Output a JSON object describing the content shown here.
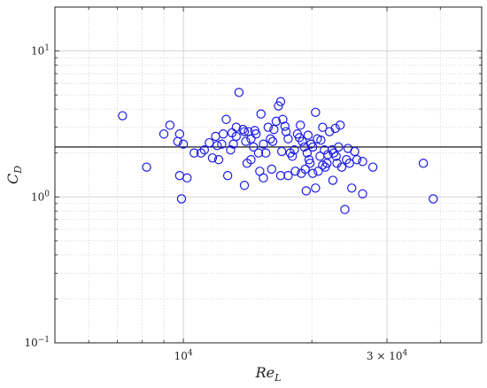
{
  "chart_data": {
    "type": "scatter",
    "xscale": "log",
    "yscale": "log",
    "xlim": [
      5000,
      50000
    ],
    "ylim": [
      0.1,
      20
    ],
    "grid": true,
    "xlabel": {
      "main": "Re",
      "sub": "L"
    },
    "ylabel": {
      "main": "C",
      "sub": "D"
    },
    "x_ticks": [
      {
        "value": 10000,
        "label": "10",
        "exp": "4"
      },
      {
        "value": 30000,
        "label": "3 × 10",
        "exp": "4"
      }
    ],
    "y_ticks": [
      {
        "value": 0.1,
        "label": "10",
        "exp": "−1"
      },
      {
        "value": 1,
        "label": "10",
        "exp": "0"
      },
      {
        "value": 10,
        "label": "10",
        "exp": "1"
      }
    ],
    "reference_line": {
      "y": 2.2
    },
    "colors": {
      "marker": "#1a1ae6",
      "reference_line": "#000000",
      "grid": "#d0d0d0",
      "axes": "#222222"
    },
    "series": [
      {
        "marker": "open-circle",
        "points": [
          [
            7200,
            3.6
          ],
          [
            9000,
            2.7
          ],
          [
            9300,
            3.1
          ],
          [
            9800,
            2.7
          ],
          [
            9700,
            2.4
          ],
          [
            10000,
            2.3
          ],
          [
            8200,
            1.6
          ],
          [
            9800,
            1.4
          ],
          [
            10200,
            1.35
          ],
          [
            9900,
            0.97
          ],
          [
            10600,
            2.0
          ],
          [
            11000,
            2.0
          ],
          [
            11200,
            2.1
          ],
          [
            11900,
            2.6
          ],
          [
            12100,
            1.8
          ],
          [
            12300,
            2.3
          ],
          [
            12400,
            2.7
          ],
          [
            12600,
            3.4
          ],
          [
            12900,
            2.1
          ],
          [
            13100,
            2.3
          ],
          [
            13300,
            2.6
          ],
          [
            13500,
            5.2
          ],
          [
            13800,
            2.9
          ],
          [
            13900,
            2.8
          ],
          [
            14000,
            2.4
          ],
          [
            14200,
            2.8
          ],
          [
            14400,
            2.5
          ],
          [
            14600,
            2.2
          ],
          [
            14800,
            2.7
          ],
          [
            15000,
            2.0
          ],
          [
            15200,
            3.7
          ],
          [
            15400,
            2.3
          ],
          [
            15600,
            2.0
          ],
          [
            15800,
            3.0
          ],
          [
            16000,
            2.5
          ],
          [
            16200,
            2.4
          ],
          [
            16500,
            3.3
          ],
          [
            16700,
            4.2
          ],
          [
            16900,
            4.5
          ],
          [
            17100,
            3.4
          ],
          [
            17400,
            2.8
          ],
          [
            17600,
            2.5
          ],
          [
            17800,
            2.0
          ],
          [
            18000,
            1.9
          ],
          [
            18200,
            2.1
          ],
          [
            18500,
            2.7
          ],
          [
            18800,
            3.1
          ],
          [
            19000,
            2.4
          ],
          [
            19200,
            2.2
          ],
          [
            19500,
            2.0
          ],
          [
            19700,
            1.8
          ],
          [
            19900,
            2.3
          ],
          [
            20100,
            2.2
          ],
          [
            20400,
            3.8
          ],
          [
            20600,
            2.5
          ],
          [
            20900,
            1.9
          ],
          [
            21200,
            3.0
          ],
          [
            21400,
            2.1
          ],
          [
            21700,
            1.7
          ],
          [
            22000,
            2.8
          ],
          [
            22300,
            2.1
          ],
          [
            22500,
            2.0
          ],
          [
            22800,
            1.9
          ],
          [
            23100,
            2.2
          ],
          [
            23500,
            1.6
          ],
          [
            24100,
            1.8
          ],
          [
            24500,
            1.7
          ],
          [
            14100,
            1.7
          ],
          [
            14400,
            1.8
          ],
          [
            15100,
            1.5
          ],
          [
            16100,
            1.55
          ],
          [
            16900,
            1.4
          ],
          [
            17600,
            1.4
          ],
          [
            18900,
            1.45
          ],
          [
            19300,
            1.55
          ],
          [
            19800,
            1.7
          ],
          [
            20100,
            1.45
          ],
          [
            20700,
            1.5
          ],
          [
            21200,
            1.65
          ],
          [
            21500,
            1.6
          ],
          [
            22400,
            1.3
          ],
          [
            12700,
            1.4
          ],
          [
            13900,
            1.2
          ],
          [
            15400,
            1.35
          ],
          [
            18300,
            1.5
          ],
          [
            19400,
            1.1
          ],
          [
            20400,
            1.15
          ],
          [
            22900,
            1.7
          ],
          [
            24800,
            1.15
          ],
          [
            25500,
            1.8
          ],
          [
            26300,
            1.05
          ],
          [
            27800,
            1.6
          ],
          [
            23900,
            0.82
          ],
          [
            26300,
            1.75
          ],
          [
            36500,
            1.7
          ],
          [
            38500,
            0.97
          ],
          [
            11500,
            2.35
          ],
          [
            12000,
            2.25
          ],
          [
            13000,
            2.75
          ],
          [
            14700,
            2.85
          ],
          [
            16300,
            2.9
          ],
          [
            17300,
            3.05
          ],
          [
            18700,
            2.55
          ],
          [
            19600,
            2.65
          ],
          [
            21000,
            2.45
          ],
          [
            22700,
            2.95
          ],
          [
            24300,
            2.15
          ],
          [
            25200,
            2.05
          ],
          [
            23300,
            3.1
          ],
          [
            13300,
            3.0
          ],
          [
            11700,
            1.85
          ],
          [
            17000,
            2.05
          ],
          [
            21800,
            1.95
          ]
        ]
      }
    ]
  }
}
